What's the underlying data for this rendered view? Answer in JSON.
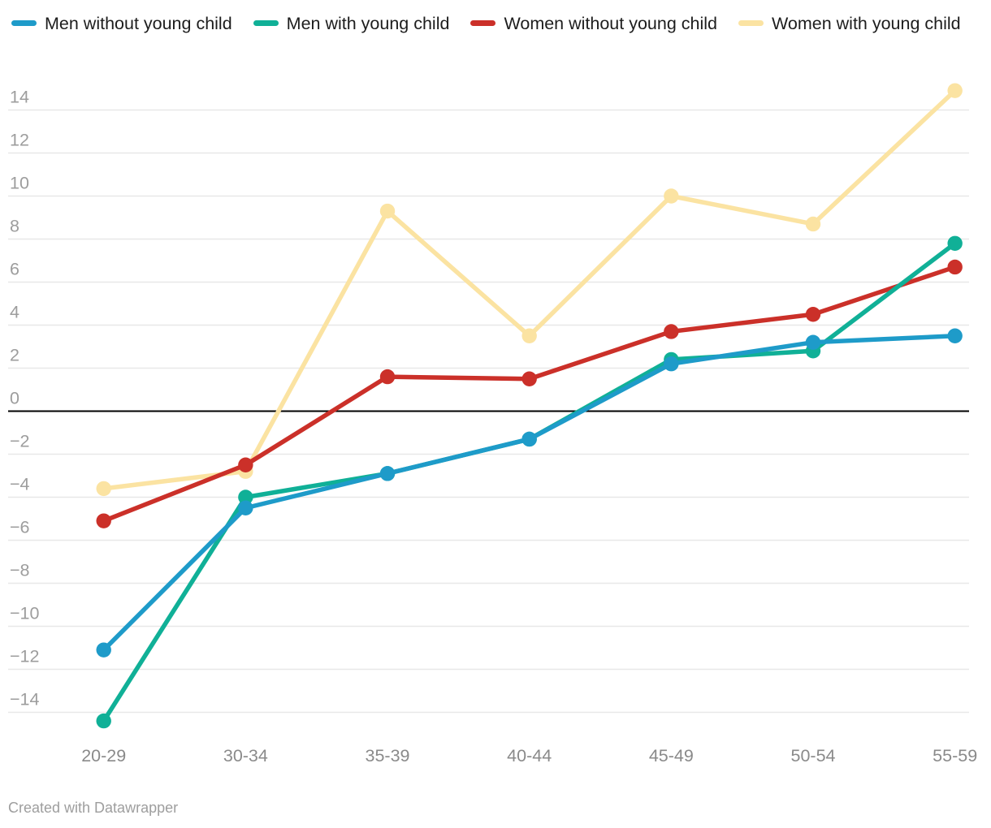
{
  "legend_position": "top",
  "footer": {
    "credit": "Created with Datawrapper"
  },
  "chart_data": {
    "type": "line",
    "title": "",
    "xlabel": "",
    "ylabel": "",
    "categories": [
      "20-29",
      "30-34",
      "35-39",
      "40-44",
      "45-49",
      "50-54",
      "55-59"
    ],
    "series": [
      {
        "name": "Men without young child",
        "color": "#1E9BC9",
        "values": [
          -11.1,
          -4.5,
          -2.9,
          -1.3,
          2.2,
          3.2,
          3.5
        ]
      },
      {
        "name": "Men with young child",
        "color": "#10B097",
        "values": [
          -14.4,
          -4.0,
          -2.9,
          -1.3,
          2.4,
          2.8,
          7.8
        ]
      },
      {
        "name": "Women without young child",
        "color": "#CB3029",
        "values": [
          -5.1,
          -2.5,
          1.6,
          1.5,
          3.7,
          4.5,
          6.7
        ]
      },
      {
        "name": "Women with young child",
        "color": "#FBE3A2",
        "values": [
          -3.6,
          -2.8,
          9.3,
          3.5,
          10.0,
          8.7,
          14.9
        ]
      }
    ],
    "y_axis": {
      "ticks": [
        {
          "v": 14,
          "label": "14"
        },
        {
          "v": 12,
          "label": "12"
        },
        {
          "v": 10,
          "label": "10"
        },
        {
          "v": 8,
          "label": "8"
        },
        {
          "v": 6,
          "label": "6"
        },
        {
          "v": 4,
          "label": "4"
        },
        {
          "v": 2,
          "label": "2"
        },
        {
          "v": 0,
          "label": "0"
        },
        {
          "v": -2,
          "label": "−2"
        },
        {
          "v": -4,
          "label": "−4"
        },
        {
          "v": -6,
          "label": "−6"
        },
        {
          "v": -8,
          "label": "−8"
        },
        {
          "v": -10,
          "label": "−10"
        },
        {
          "v": -12,
          "label": "−12"
        },
        {
          "v": -14,
          "label": "−14"
        }
      ],
      "baseline": 0
    },
    "ylim": [
      -15.6,
      15.2
    ],
    "grid": "horizontal",
    "legend_position": "top"
  }
}
